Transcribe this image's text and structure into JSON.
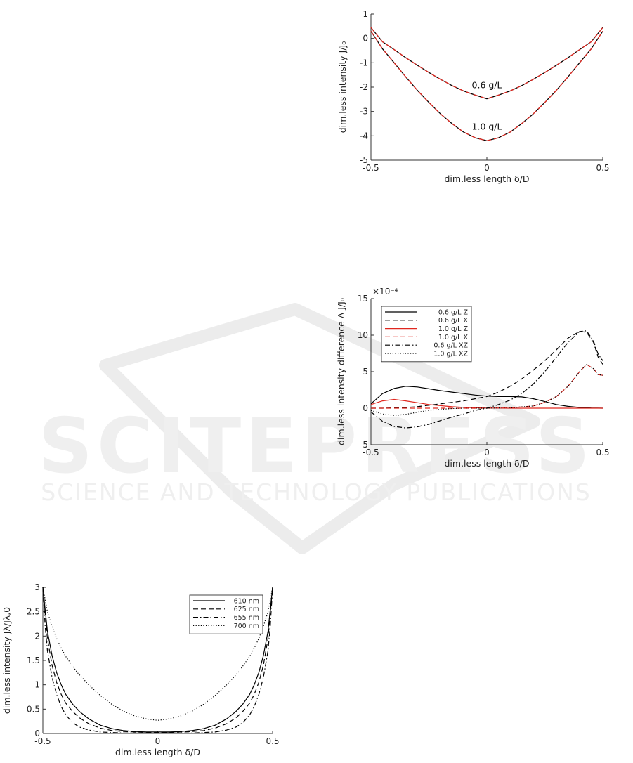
{
  "watermark": {
    "big": "SCITEPRESS",
    "small": "SCIENCE AND TECHNOLOGY PUBLICATIONS"
  },
  "chart_data": [
    {
      "id": "top",
      "type": "line",
      "xlabel": "dim.less length δ/D",
      "ylabel": "dim.less intensity J/J₀",
      "xlim": [
        -0.5,
        0.5
      ],
      "ylim": [
        -5,
        1
      ],
      "xticks": [
        "-0.5",
        "0",
        "0.5"
      ],
      "yticks": [
        "1",
        "0",
        "-1",
        "-2",
        "-3",
        "-4",
        "-5"
      ],
      "grid": false,
      "annotations": [
        {
          "text": "0.6 g/L",
          "x": 0,
          "y": -2.05
        },
        {
          "text": "1.0 g/L",
          "x": 0,
          "y": -3.75
        }
      ],
      "series": [
        {
          "color": "#000000",
          "dash": "solid",
          "width": 1.3,
          "x": [
            -0.5,
            -0.45,
            -0.4,
            -0.35,
            -0.3,
            -0.25,
            -0.2,
            -0.15,
            -0.1,
            -0.05,
            0,
            0.05,
            0.1,
            0.15,
            0.2,
            0.25,
            0.3,
            0.35,
            0.4,
            0.45,
            0.5
          ],
          "y": [
            0.45,
            -0.14,
            -0.46,
            -0.79,
            -1.1,
            -1.4,
            -1.68,
            -1.94,
            -2.16,
            -2.33,
            -2.48,
            -2.33,
            -2.16,
            -1.94,
            -1.68,
            -1.4,
            -1.1,
            -0.79,
            -0.46,
            -0.14,
            0.45
          ]
        },
        {
          "color": "#e0271f",
          "dash": "dashed",
          "width": 1.3,
          "x": [
            -0.5,
            -0.45,
            -0.4,
            -0.35,
            -0.3,
            -0.25,
            -0.2,
            -0.15,
            -0.1,
            -0.05,
            0,
            0.05,
            0.1,
            0.15,
            0.2,
            0.25,
            0.3,
            0.35,
            0.4,
            0.45,
            0.5
          ],
          "y": [
            0.45,
            -0.14,
            -0.46,
            -0.79,
            -1.1,
            -1.4,
            -1.68,
            -1.94,
            -2.16,
            -2.33,
            -2.48,
            -2.33,
            -2.16,
            -1.94,
            -1.68,
            -1.4,
            -1.1,
            -0.79,
            -0.46,
            -0.14,
            0.45
          ]
        },
        {
          "color": "#000000",
          "dash": "solid",
          "width": 1.3,
          "x": [
            -0.5,
            -0.45,
            -0.4,
            -0.35,
            -0.3,
            -0.25,
            -0.2,
            -0.15,
            -0.1,
            -0.05,
            0,
            0.05,
            0.1,
            0.15,
            0.2,
            0.25,
            0.3,
            0.35,
            0.4,
            0.45,
            0.5
          ],
          "y": [
            0.3,
            -0.43,
            -1.0,
            -1.58,
            -2.13,
            -2.63,
            -3.1,
            -3.5,
            -3.85,
            -4.08,
            -4.2,
            -4.08,
            -3.85,
            -3.5,
            -3.1,
            -2.63,
            -2.13,
            -1.58,
            -1.0,
            -0.43,
            0.3
          ]
        },
        {
          "color": "#e0271f",
          "dash": "dashed",
          "width": 1.3,
          "x": [
            -0.5,
            -0.45,
            -0.4,
            -0.35,
            -0.3,
            -0.25,
            -0.2,
            -0.15,
            -0.1,
            -0.05,
            0,
            0.05,
            0.1,
            0.15,
            0.2,
            0.25,
            0.3,
            0.35,
            0.4,
            0.45,
            0.5
          ],
          "y": [
            0.3,
            -0.43,
            -1.0,
            -1.58,
            -2.13,
            -2.63,
            -3.1,
            -3.5,
            -3.85,
            -4.08,
            -4.2,
            -4.08,
            -3.85,
            -3.5,
            -3.1,
            -2.63,
            -2.13,
            -1.58,
            -1.0,
            -0.43,
            0.3
          ]
        }
      ]
    },
    {
      "id": "middle",
      "type": "line",
      "xlabel": "dim.less length δ/D",
      "ylabel": "dim.less intensity difference Δ J/J₀",
      "exponent": "×10⁻⁴",
      "xlim": [
        -0.5,
        0.5
      ],
      "ylim": [
        -5,
        15
      ],
      "xticks": [
        "-0.5",
        "0",
        "0.5"
      ],
      "yticks": [
        "15",
        "10",
        "5",
        "0",
        "-5"
      ],
      "grid": false,
      "legend_position": "top-left",
      "series": [
        {
          "name": "0.6 g/L Z",
          "color": "#000000",
          "dash": "solid",
          "width": 1.2,
          "x": [
            -0.5,
            -0.45,
            -0.4,
            -0.35,
            -0.3,
            -0.25,
            -0.2,
            -0.15,
            -0.1,
            -0.05,
            0,
            0.05,
            0.1,
            0.15,
            0.2,
            0.25,
            0.3,
            0.35,
            0.4,
            0.45,
            0.5
          ],
          "y": [
            0.6,
            2.0,
            2.7,
            3.0,
            2.9,
            2.65,
            2.4,
            2.2,
            2.0,
            1.8,
            1.65,
            1.6,
            1.6,
            1.55,
            1.3,
            0.9,
            0.5,
            0.25,
            0.1,
            0.03,
            0
          ]
        },
        {
          "name": "0.6 g/L X",
          "color": "#000000",
          "dash": "dashed",
          "width": 1.2,
          "x": [
            -0.5,
            -0.45,
            -0.4,
            -0.35,
            -0.3,
            -0.25,
            -0.2,
            -0.15,
            -0.1,
            -0.05,
            0,
            0.05,
            0.1,
            0.15,
            0.2,
            0.25,
            0.3,
            0.35,
            0.4,
            0.43,
            0.46,
            0.48,
            0.5
          ],
          "y": [
            0,
            0,
            0.05,
            0.1,
            0.2,
            0.4,
            0.6,
            0.8,
            1.0,
            1.3,
            1.6,
            2.2,
            3.0,
            4.0,
            5.2,
            6.5,
            8.0,
            9.6,
            10.5,
            10.4,
            9.0,
            7.0,
            6.0
          ]
        },
        {
          "name": "1.0 g/L Z",
          "color": "#e0271f",
          "dash": "solid",
          "width": 1.2,
          "x": [
            -0.5,
            -0.45,
            -0.4,
            -0.35,
            -0.3,
            -0.25,
            -0.2,
            -0.15,
            -0.1,
            -0.05,
            0,
            0.1,
            0.2,
            0.3,
            0.4,
            0.5
          ],
          "y": [
            0.5,
            1.0,
            1.2,
            1.0,
            0.75,
            0.5,
            0.35,
            0.2,
            0.12,
            0.06,
            0.02,
            0,
            0,
            0,
            0,
            0
          ]
        },
        {
          "name": "1.0 g/L X",
          "color": "#e0271f",
          "dash": "dashed",
          "width": 1.2,
          "x": [
            -0.5,
            -0.3,
            -0.1,
            0,
            0.1,
            0.2,
            0.25,
            0.3,
            0.35,
            0.4,
            0.43,
            0.46,
            0.48,
            0.5
          ],
          "y": [
            0,
            0,
            0,
            0,
            0.05,
            0.3,
            0.8,
            1.6,
            3.0,
            5.0,
            6.0,
            5.4,
            4.6,
            4.5
          ]
        },
        {
          "name": "0.6 g/L XZ",
          "color": "#000000",
          "dash": "dashdot",
          "width": 1.2,
          "x": [
            -0.5,
            -0.45,
            -0.4,
            -0.35,
            -0.3,
            -0.25,
            -0.2,
            -0.15,
            -0.1,
            -0.05,
            0,
            0.05,
            0.1,
            0.15,
            0.2,
            0.25,
            0.3,
            0.35,
            0.4,
            0.43,
            0.46,
            0.48,
            0.5
          ],
          "y": [
            -0.5,
            -1.8,
            -2.5,
            -2.7,
            -2.55,
            -2.2,
            -1.7,
            -1.2,
            -0.8,
            -0.3,
            0,
            0.5,
            1.1,
            2.0,
            3.3,
            5.0,
            7.0,
            9.0,
            10.5,
            10.6,
            9.2,
            7.4,
            6.5
          ]
        },
        {
          "name": "1.0 g/L XZ",
          "color": "#000000",
          "dash": "dotted",
          "width": 1.2,
          "x": [
            -0.5,
            -0.45,
            -0.4,
            -0.35,
            -0.3,
            -0.25,
            -0.2,
            -0.15,
            -0.1,
            -0.05,
            0,
            0.1,
            0.2,
            0.25,
            0.3,
            0.35,
            0.4,
            0.43,
            0.46,
            0.48,
            0.5
          ],
          "y": [
            -0.3,
            -0.8,
            -1.0,
            -0.85,
            -0.55,
            -0.3,
            -0.15,
            -0.05,
            0,
            0,
            0,
            0.05,
            0.3,
            0.8,
            1.6,
            3.0,
            5.0,
            6.0,
            5.4,
            4.6,
            4.5
          ]
        }
      ]
    },
    {
      "id": "bottom",
      "type": "line",
      "xlabel": "dim.less length δ/D",
      "ylabel": "dim.less intensity Jλ/Jλ,0",
      "xlim": [
        -0.5,
        0.5
      ],
      "ylim": [
        0,
        3
      ],
      "xticks": [
        "-0.5",
        "0",
        "0.5"
      ],
      "yticks": [
        "3",
        "2.5",
        "2",
        "1.5",
        "1",
        "0.5",
        "0"
      ],
      "grid": false,
      "legend_position": "top-right",
      "series": [
        {
          "name": "610 nm",
          "color": "#000000",
          "dash": "solid",
          "width": 1.2,
          "x": [
            -0.5,
            -0.48,
            -0.46,
            -0.44,
            -0.42,
            -0.4,
            -0.37,
            -0.34,
            -0.3,
            -0.25,
            -0.2,
            -0.15,
            -0.1,
            -0.05,
            0,
            0.05,
            0.1,
            0.15,
            0.2,
            0.25,
            0.3,
            0.34,
            0.37,
            0.4,
            0.42,
            0.44,
            0.46,
            0.48,
            0.5
          ],
          "y": [
            3.0,
            2.1,
            1.6,
            1.25,
            1.0,
            0.8,
            0.6,
            0.45,
            0.3,
            0.17,
            0.1,
            0.06,
            0.04,
            0.03,
            0.03,
            0.03,
            0.04,
            0.06,
            0.1,
            0.17,
            0.3,
            0.45,
            0.6,
            0.8,
            1.0,
            1.25,
            1.6,
            2.1,
            3.0
          ]
        },
        {
          "name": "625 nm",
          "color": "#000000",
          "dash": "dashed",
          "width": 1.2,
          "x": [
            -0.5,
            -0.48,
            -0.46,
            -0.44,
            -0.42,
            -0.4,
            -0.37,
            -0.34,
            -0.3,
            -0.25,
            -0.2,
            -0.15,
            -0.1,
            -0.05,
            0,
            0.05,
            0.1,
            0.15,
            0.2,
            0.25,
            0.3,
            0.34,
            0.37,
            0.4,
            0.42,
            0.44,
            0.46,
            0.48,
            0.5
          ],
          "y": [
            3.0,
            1.95,
            1.4,
            1.05,
            0.8,
            0.62,
            0.45,
            0.32,
            0.2,
            0.11,
            0.06,
            0.04,
            0.03,
            0.02,
            0.02,
            0.02,
            0.03,
            0.04,
            0.06,
            0.11,
            0.2,
            0.32,
            0.45,
            0.62,
            0.8,
            1.05,
            1.4,
            1.95,
            3.0
          ]
        },
        {
          "name": "655 nm",
          "color": "#000000",
          "dash": "dashdot",
          "width": 1.2,
          "x": [
            -0.5,
            -0.49,
            -0.48,
            -0.46,
            -0.44,
            -0.42,
            -0.4,
            -0.37,
            -0.34,
            -0.3,
            -0.25,
            -0.2,
            -0.15,
            -0.1,
            0,
            0.1,
            0.15,
            0.2,
            0.25,
            0.3,
            0.34,
            0.37,
            0.4,
            0.42,
            0.44,
            0.46,
            0.48,
            0.49,
            0.5
          ],
          "y": [
            3.0,
            2.2,
            1.7,
            1.15,
            0.8,
            0.55,
            0.38,
            0.22,
            0.13,
            0.07,
            0.03,
            0.02,
            0.01,
            0.01,
            0.01,
            0.01,
            0.01,
            0.02,
            0.03,
            0.07,
            0.13,
            0.22,
            0.38,
            0.55,
            0.8,
            1.15,
            1.7,
            2.2,
            3.0
          ]
        },
        {
          "name": "700 nm",
          "color": "#000000",
          "dash": "dotted",
          "width": 1.2,
          "x": [
            -0.5,
            -0.48,
            -0.46,
            -0.44,
            -0.42,
            -0.4,
            -0.35,
            -0.3,
            -0.25,
            -0.2,
            -0.15,
            -0.1,
            -0.05,
            0,
            0.05,
            0.1,
            0.15,
            0.2,
            0.25,
            0.3,
            0.35,
            0.4,
            0.42,
            0.44,
            0.46,
            0.48,
            0.5
          ],
          "y": [
            3.0,
            2.5,
            2.2,
            1.95,
            1.75,
            1.58,
            1.25,
            1.0,
            0.78,
            0.6,
            0.46,
            0.36,
            0.3,
            0.27,
            0.3,
            0.36,
            0.46,
            0.6,
            0.78,
            1.0,
            1.25,
            1.58,
            1.75,
            1.95,
            2.2,
            2.5,
            3.0
          ]
        }
      ]
    }
  ]
}
